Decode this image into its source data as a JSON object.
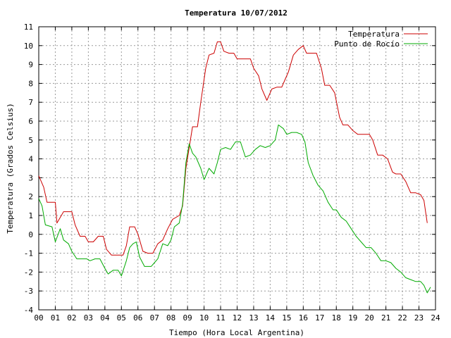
{
  "chart_data": {
    "type": "line",
    "title": "Temperatura 10/07/2012",
    "xlabel": "Tiempo (Hora Local Argentina)",
    "ylabel": "Temperatura (Grados Celsius)",
    "xlim": [
      0,
      24
    ],
    "ylim": [
      -4,
      11
    ],
    "xticks": [
      "00",
      "01",
      "02",
      "03",
      "04",
      "05",
      "06",
      "07",
      "08",
      "09",
      "10",
      "11",
      "12",
      "13",
      "14",
      "15",
      "16",
      "17",
      "18",
      "19",
      "20",
      "21",
      "22",
      "23",
      "24"
    ],
    "yticks": [
      "-4",
      "-3",
      "-2",
      "-1",
      "0",
      "1",
      "2",
      "3",
      "4",
      "5",
      "6",
      "7",
      "8",
      "9",
      "10",
      "11"
    ],
    "grid": true,
    "legend_position": "top-right",
    "series": [
      {
        "name": "Temperatura",
        "color": "#cc0000",
        "points": [
          [
            0.0,
            3.1
          ],
          [
            0.3,
            2.5
          ],
          [
            0.5,
            1.7
          ],
          [
            1.0,
            1.7
          ],
          [
            1.1,
            0.6
          ],
          [
            1.3,
            0.9
          ],
          [
            1.5,
            1.2
          ],
          [
            2.0,
            1.2
          ],
          [
            2.2,
            0.5
          ],
          [
            2.5,
            -0.1
          ],
          [
            2.8,
            -0.1
          ],
          [
            3.0,
            -0.4
          ],
          [
            3.3,
            -0.4
          ],
          [
            3.6,
            -0.1
          ],
          [
            3.9,
            -0.1
          ],
          [
            4.1,
            -0.8
          ],
          [
            4.4,
            -1.1
          ],
          [
            4.8,
            -1.1
          ],
          [
            5.1,
            -1.1
          ],
          [
            5.3,
            -0.6
          ],
          [
            5.5,
            0.4
          ],
          [
            5.8,
            0.4
          ],
          [
            6.0,
            0.0
          ],
          [
            6.3,
            -0.9
          ],
          [
            6.6,
            -1.0
          ],
          [
            6.9,
            -1.0
          ],
          [
            7.2,
            -0.5
          ],
          [
            7.5,
            -0.3
          ],
          [
            7.8,
            0.3
          ],
          [
            8.1,
            0.8
          ],
          [
            8.5,
            1.0
          ],
          [
            8.7,
            1.5
          ],
          [
            8.9,
            3.5
          ],
          [
            9.1,
            4.6
          ],
          [
            9.3,
            5.7
          ],
          [
            9.6,
            5.7
          ],
          [
            9.8,
            7.0
          ],
          [
            10.1,
            8.8
          ],
          [
            10.3,
            9.5
          ],
          [
            10.6,
            9.6
          ],
          [
            10.8,
            10.2
          ],
          [
            11.0,
            10.2
          ],
          [
            11.2,
            9.7
          ],
          [
            11.5,
            9.6
          ],
          [
            11.8,
            9.6
          ],
          [
            12.0,
            9.3
          ],
          [
            12.5,
            9.3
          ],
          [
            12.8,
            9.3
          ],
          [
            13.0,
            8.8
          ],
          [
            13.3,
            8.4
          ],
          [
            13.5,
            7.7
          ],
          [
            13.8,
            7.1
          ],
          [
            14.1,
            7.7
          ],
          [
            14.4,
            7.8
          ],
          [
            14.7,
            7.8
          ],
          [
            14.9,
            8.2
          ],
          [
            15.1,
            8.6
          ],
          [
            15.4,
            9.5
          ],
          [
            15.7,
            9.8
          ],
          [
            16.0,
            10.0
          ],
          [
            16.2,
            9.6
          ],
          [
            16.5,
            9.6
          ],
          [
            16.8,
            9.6
          ],
          [
            17.1,
            8.8
          ],
          [
            17.3,
            7.9
          ],
          [
            17.6,
            7.9
          ],
          [
            17.9,
            7.5
          ],
          [
            18.2,
            6.2
          ],
          [
            18.4,
            5.8
          ],
          [
            18.7,
            5.8
          ],
          [
            19.0,
            5.5
          ],
          [
            19.3,
            5.3
          ],
          [
            19.6,
            5.3
          ],
          [
            20.0,
            5.3
          ],
          [
            20.2,
            5.0
          ],
          [
            20.5,
            4.2
          ],
          [
            20.8,
            4.2
          ],
          [
            21.1,
            4.0
          ],
          [
            21.4,
            3.3
          ],
          [
            21.6,
            3.2
          ],
          [
            21.9,
            3.2
          ],
          [
            22.2,
            2.8
          ],
          [
            22.5,
            2.2
          ],
          [
            22.8,
            2.2
          ],
          [
            23.1,
            2.1
          ],
          [
            23.3,
            1.8
          ],
          [
            23.4,
            1.2
          ],
          [
            23.5,
            0.6
          ]
        ]
      },
      {
        "name": "Punto de Rocío",
        "color": "#00aa00",
        "points": [
          [
            0.0,
            1.9
          ],
          [
            0.2,
            1.5
          ],
          [
            0.4,
            0.5
          ],
          [
            0.8,
            0.4
          ],
          [
            1.0,
            -0.4
          ],
          [
            1.3,
            0.3
          ],
          [
            1.5,
            -0.3
          ],
          [
            1.8,
            -0.5
          ],
          [
            2.0,
            -0.9
          ],
          [
            2.3,
            -1.3
          ],
          [
            2.6,
            -1.3
          ],
          [
            2.9,
            -1.3
          ],
          [
            3.1,
            -1.4
          ],
          [
            3.4,
            -1.3
          ],
          [
            3.7,
            -1.3
          ],
          [
            4.0,
            -1.8
          ],
          [
            4.2,
            -2.1
          ],
          [
            4.5,
            -1.9
          ],
          [
            4.8,
            -1.9
          ],
          [
            5.0,
            -2.2
          ],
          [
            5.3,
            -1.4
          ],
          [
            5.5,
            -0.7
          ],
          [
            5.7,
            -0.5
          ],
          [
            5.9,
            -0.4
          ],
          [
            6.1,
            -1.2
          ],
          [
            6.4,
            -1.7
          ],
          [
            6.8,
            -1.7
          ],
          [
            7.0,
            -1.5
          ],
          [
            7.2,
            -1.3
          ],
          [
            7.5,
            -0.5
          ],
          [
            7.8,
            -0.6
          ],
          [
            8.0,
            -0.3
          ],
          [
            8.2,
            0.4
          ],
          [
            8.5,
            0.6
          ],
          [
            8.7,
            1.6
          ],
          [
            8.9,
            3.8
          ],
          [
            9.1,
            4.8
          ],
          [
            9.3,
            4.3
          ],
          [
            9.5,
            4.1
          ],
          [
            9.8,
            3.5
          ],
          [
            10.0,
            2.9
          ],
          [
            10.3,
            3.5
          ],
          [
            10.6,
            3.2
          ],
          [
            10.8,
            3.8
          ],
          [
            11.0,
            4.5
          ],
          [
            11.3,
            4.6
          ],
          [
            11.6,
            4.5
          ],
          [
            11.9,
            4.9
          ],
          [
            12.2,
            4.9
          ],
          [
            12.5,
            4.1
          ],
          [
            12.8,
            4.2
          ],
          [
            13.1,
            4.5
          ],
          [
            13.4,
            4.7
          ],
          [
            13.7,
            4.6
          ],
          [
            14.0,
            4.7
          ],
          [
            14.3,
            5.0
          ],
          [
            14.5,
            5.8
          ],
          [
            14.8,
            5.6
          ],
          [
            15.0,
            5.3
          ],
          [
            15.3,
            5.4
          ],
          [
            15.6,
            5.4
          ],
          [
            15.9,
            5.3
          ],
          [
            16.1,
            4.9
          ],
          [
            16.3,
            3.8
          ],
          [
            16.6,
            3.1
          ],
          [
            16.9,
            2.6
          ],
          [
            17.2,
            2.3
          ],
          [
            17.5,
            1.7
          ],
          [
            17.8,
            1.3
          ],
          [
            18.0,
            1.3
          ],
          [
            18.3,
            0.9
          ],
          [
            18.6,
            0.7
          ],
          [
            18.9,
            0.3
          ],
          [
            19.2,
            -0.1
          ],
          [
            19.5,
            -0.4
          ],
          [
            19.8,
            -0.7
          ],
          [
            20.1,
            -0.7
          ],
          [
            20.4,
            -1.0
          ],
          [
            20.7,
            -1.4
          ],
          [
            21.0,
            -1.4
          ],
          [
            21.3,
            -1.5
          ],
          [
            21.6,
            -1.8
          ],
          [
            21.9,
            -2.0
          ],
          [
            22.2,
            -2.3
          ],
          [
            22.5,
            -2.4
          ],
          [
            22.8,
            -2.5
          ],
          [
            23.1,
            -2.5
          ],
          [
            23.3,
            -2.7
          ],
          [
            23.5,
            -3.1
          ],
          [
            23.7,
            -2.8
          ]
        ]
      }
    ]
  }
}
